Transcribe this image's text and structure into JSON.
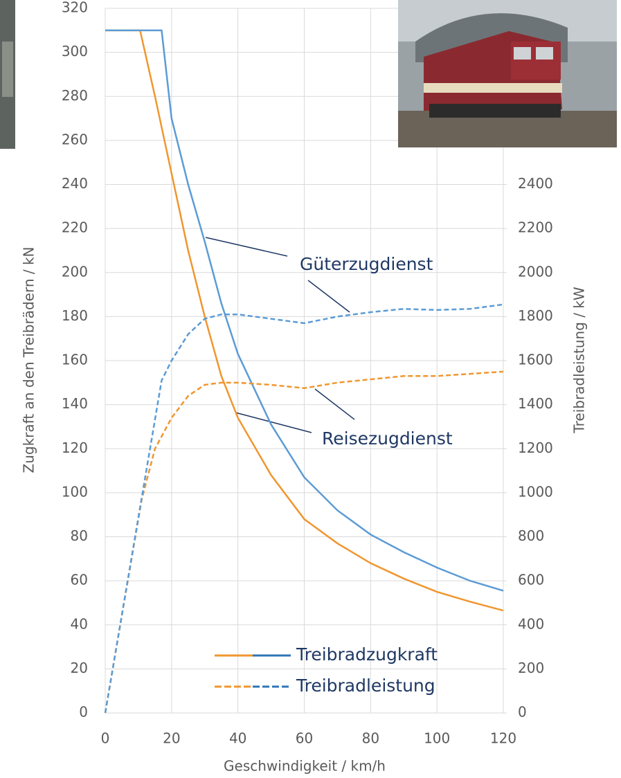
{
  "chart_data": {
    "type": "line",
    "xlabel": "Geschwindigkeit / km/h",
    "ylabel": "Zugkraft an den Treibrädern / kN",
    "y2label": "Treibradleistung / kW",
    "xlim": [
      0,
      120
    ],
    "xticks": [
      0,
      20,
      40,
      60,
      80,
      100,
      120
    ],
    "ylim": [
      0,
      320
    ],
    "yticks": [
      0,
      20,
      40,
      60,
      80,
      100,
      120,
      140,
      160,
      180,
      200,
      220,
      240,
      260,
      280,
      300,
      320
    ],
    "y2lim": [
      0,
      3200
    ],
    "y2ticks": [
      0,
      200,
      400,
      600,
      800,
      1000,
      1200,
      1400,
      1600,
      1800,
      2000,
      2200,
      2400
    ],
    "grid": true,
    "series": [
      {
        "color": "#f0962e",
        "dash": false,
        "axis": "y",
        "x": [
          0,
          10.5,
          15,
          20,
          25,
          30,
          35,
          40,
          50,
          60,
          70,
          80,
          90,
          100,
          110,
          120
        ],
        "values": [
          310,
          310,
          280,
          245,
          210,
          180,
          153,
          134,
          108,
          88,
          77,
          68,
          61,
          55,
          50.5,
          46.5
        ]
      },
      {
        "color": "#5b9bd5",
        "dash": false,
        "axis": "y",
        "x": [
          0,
          17,
          20,
          25,
          30,
          35,
          40,
          50,
          60,
          70,
          80,
          90,
          100,
          110,
          120
        ],
        "values": [
          310,
          310,
          270,
          240,
          214,
          186,
          163,
          131,
          107,
          92,
          81,
          73,
          66,
          60,
          55.5
        ]
      },
      {
        "color": "#f0962e",
        "dash": true,
        "axis": "y2",
        "x": [
          0,
          11,
          15,
          20,
          25,
          30,
          35,
          40,
          50,
          60,
          70,
          80,
          90,
          100,
          110,
          120
        ],
        "values": [
          0,
          970,
          1200,
          1340,
          1440,
          1490,
          1500,
          1500,
          1490,
          1475,
          1500,
          1515,
          1530,
          1530,
          1540,
          1550
        ]
      },
      {
        "color": "#5b9bd5",
        "dash": true,
        "axis": "y2",
        "x": [
          0,
          17,
          20,
          25,
          30,
          35,
          40,
          50,
          60,
          70,
          75,
          80,
          90,
          100,
          110,
          120
        ],
        "values": [
          0,
          1510,
          1600,
          1720,
          1790,
          1810,
          1810,
          1790,
          1770,
          1800,
          1810,
          1820,
          1835,
          1830,
          1835,
          1855
        ]
      }
    ],
    "annotations": [
      "Güterzugdienst",
      "Reisezugdienst"
    ],
    "legend": [
      {
        "label": "Treibradzugkraft",
        "dash": false,
        "colors": [
          "#f0962e",
          "#2e75b6"
        ]
      },
      {
        "label": "Treibradleistung",
        "dash": true,
        "colors": [
          "#f0962e",
          "#2e75b6"
        ]
      }
    ]
  }
}
